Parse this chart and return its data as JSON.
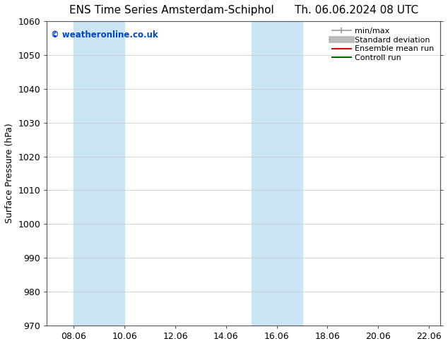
{
  "title": "ENS Time Series Amsterdam-Schiphol      Th. 06.06.2024 08 UTC",
  "ylabel": "Surface Pressure (hPa)",
  "ylim": [
    970,
    1060
  ],
  "yticks": [
    970,
    980,
    990,
    1000,
    1010,
    1020,
    1030,
    1040,
    1050,
    1060
  ],
  "xlim": [
    7.0,
    22.5
  ],
  "xticks": [
    8.06,
    10.06,
    12.06,
    14.06,
    16.06,
    18.06,
    20.06,
    22.06
  ],
  "xticklabels": [
    "08.06",
    "10.06",
    "12.06",
    "14.06",
    "16.06",
    "18.06",
    "20.06",
    "22.06"
  ],
  "background_color": "#ffffff",
  "plot_bg_color": "#ffffff",
  "watermark_text": "© weatheronline.co.uk",
  "watermark_color": "#0044cc",
  "shaded_regions": [
    {
      "x_start": 8.06,
      "x_end": 10.06,
      "color": "#cce5f5"
    },
    {
      "x_start": 15.06,
      "x_end": 17.06,
      "color": "#cce5f5"
    }
  ],
  "legend_items": [
    {
      "label": "min/max",
      "color": "#999999",
      "linestyle": "-",
      "linewidth": 1.2,
      "type": "minmax"
    },
    {
      "label": "Standard deviation",
      "color": "#bbbbbb",
      "linestyle": "-",
      "linewidth": 7,
      "type": "thick"
    },
    {
      "label": "Ensemble mean run",
      "color": "#dd0000",
      "linestyle": "-",
      "linewidth": 1.5,
      "type": "line"
    },
    {
      "label": "Controll run",
      "color": "#006600",
      "linestyle": "-",
      "linewidth": 1.5,
      "type": "line"
    }
  ],
  "title_fontsize": 11,
  "tick_fontsize": 9,
  "ylabel_fontsize": 9,
  "legend_fontsize": 8,
  "grid_color": "#cccccc",
  "grid_linewidth": 0.6,
  "spine_color": "#555555"
}
